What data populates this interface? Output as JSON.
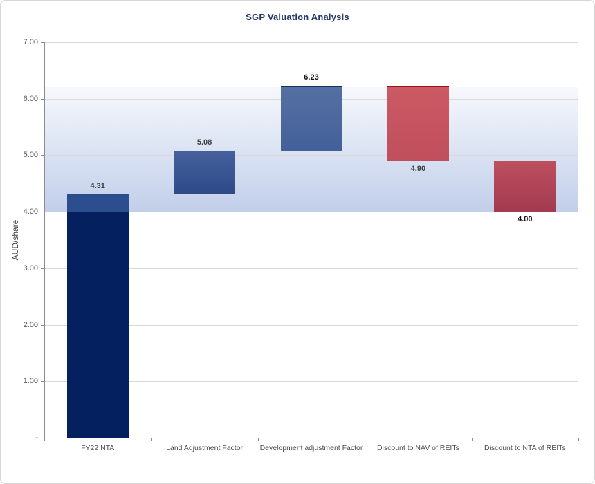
{
  "window": {
    "background": "#ffffff",
    "border_color": "#d6d6d6"
  },
  "chart_data": {
    "type": "bar",
    "subtype": "waterfall",
    "title": "SGP Valuation Analysis",
    "title_color": "#1f3864",
    "xlabel": "",
    "ylabel": "AUD/share",
    "ylim": [
      0,
      7
    ],
    "ytick_step": 1,
    "ytick_labels": [
      "7.00",
      "6.00",
      "5.00",
      "4.00",
      "3.00",
      "2.00",
      "1.00",
      "-"
    ],
    "grid": true,
    "legend": "none",
    "gridline_color": "#d9d9d9",
    "axis_color": "#8c8c8c",
    "tick_label_color": "#595959",
    "category_label_color": "#4d4d4d",
    "background_band": {
      "from": 4.0,
      "to": 6.2,
      "color_top": "#f6f8fc",
      "color_bottom": "#c2cfea"
    },
    "categories": [
      "FY22 NTA",
      "Land Adjustment Factor",
      "Development adjustment Factor",
      "Discount to NAV of REITs",
      "Discount to NTA of REITs"
    ],
    "bars": [
      {
        "category": "FY22 NTA",
        "from": 0.0,
        "to": 4.31,
        "value": 4.31,
        "value_label": "4.31",
        "label_pos": "above",
        "label_color": "#3f3f3f",
        "fill_top": "#2d4e8e",
        "fill_bottom": "#04205e",
        "split_value": 4.0
      },
      {
        "category": "Land Adjustment Factor",
        "from": 4.31,
        "to": 5.08,
        "value": 5.08,
        "value_label": "5.08",
        "label_pos": "above",
        "label_color": "#3f3f3f",
        "fill_top": "#46619d",
        "fill_bottom": "#2d4a88"
      },
      {
        "category": "Development adjustment Factor",
        "from": 5.08,
        "to": 6.23,
        "value": 6.23,
        "value_label": "6.23",
        "label_pos": "above",
        "label_color": "#111111",
        "fill_top": "#5470a2",
        "fill_bottom": "#44609a",
        "top_border_color": "#17305f"
      },
      {
        "category": "Discount to NAV of REITs",
        "from": 6.23,
        "to": 4.9,
        "value": 4.9,
        "value_label": "4.90",
        "label_pos": "below",
        "label_color": "#3f3f3f",
        "fill_top": "#cb5a64",
        "fill_bottom": "#c04f5d",
        "top_border_color": "#9c1216"
      },
      {
        "category": "Discount to NTA of REITs",
        "from": 4.9,
        "to": 4.0,
        "value": 4.0,
        "value_label": "4.00",
        "label_pos": "below",
        "label_color": "#111111",
        "fill_top": "#bd505f",
        "fill_bottom": "#a23a50"
      }
    ]
  }
}
